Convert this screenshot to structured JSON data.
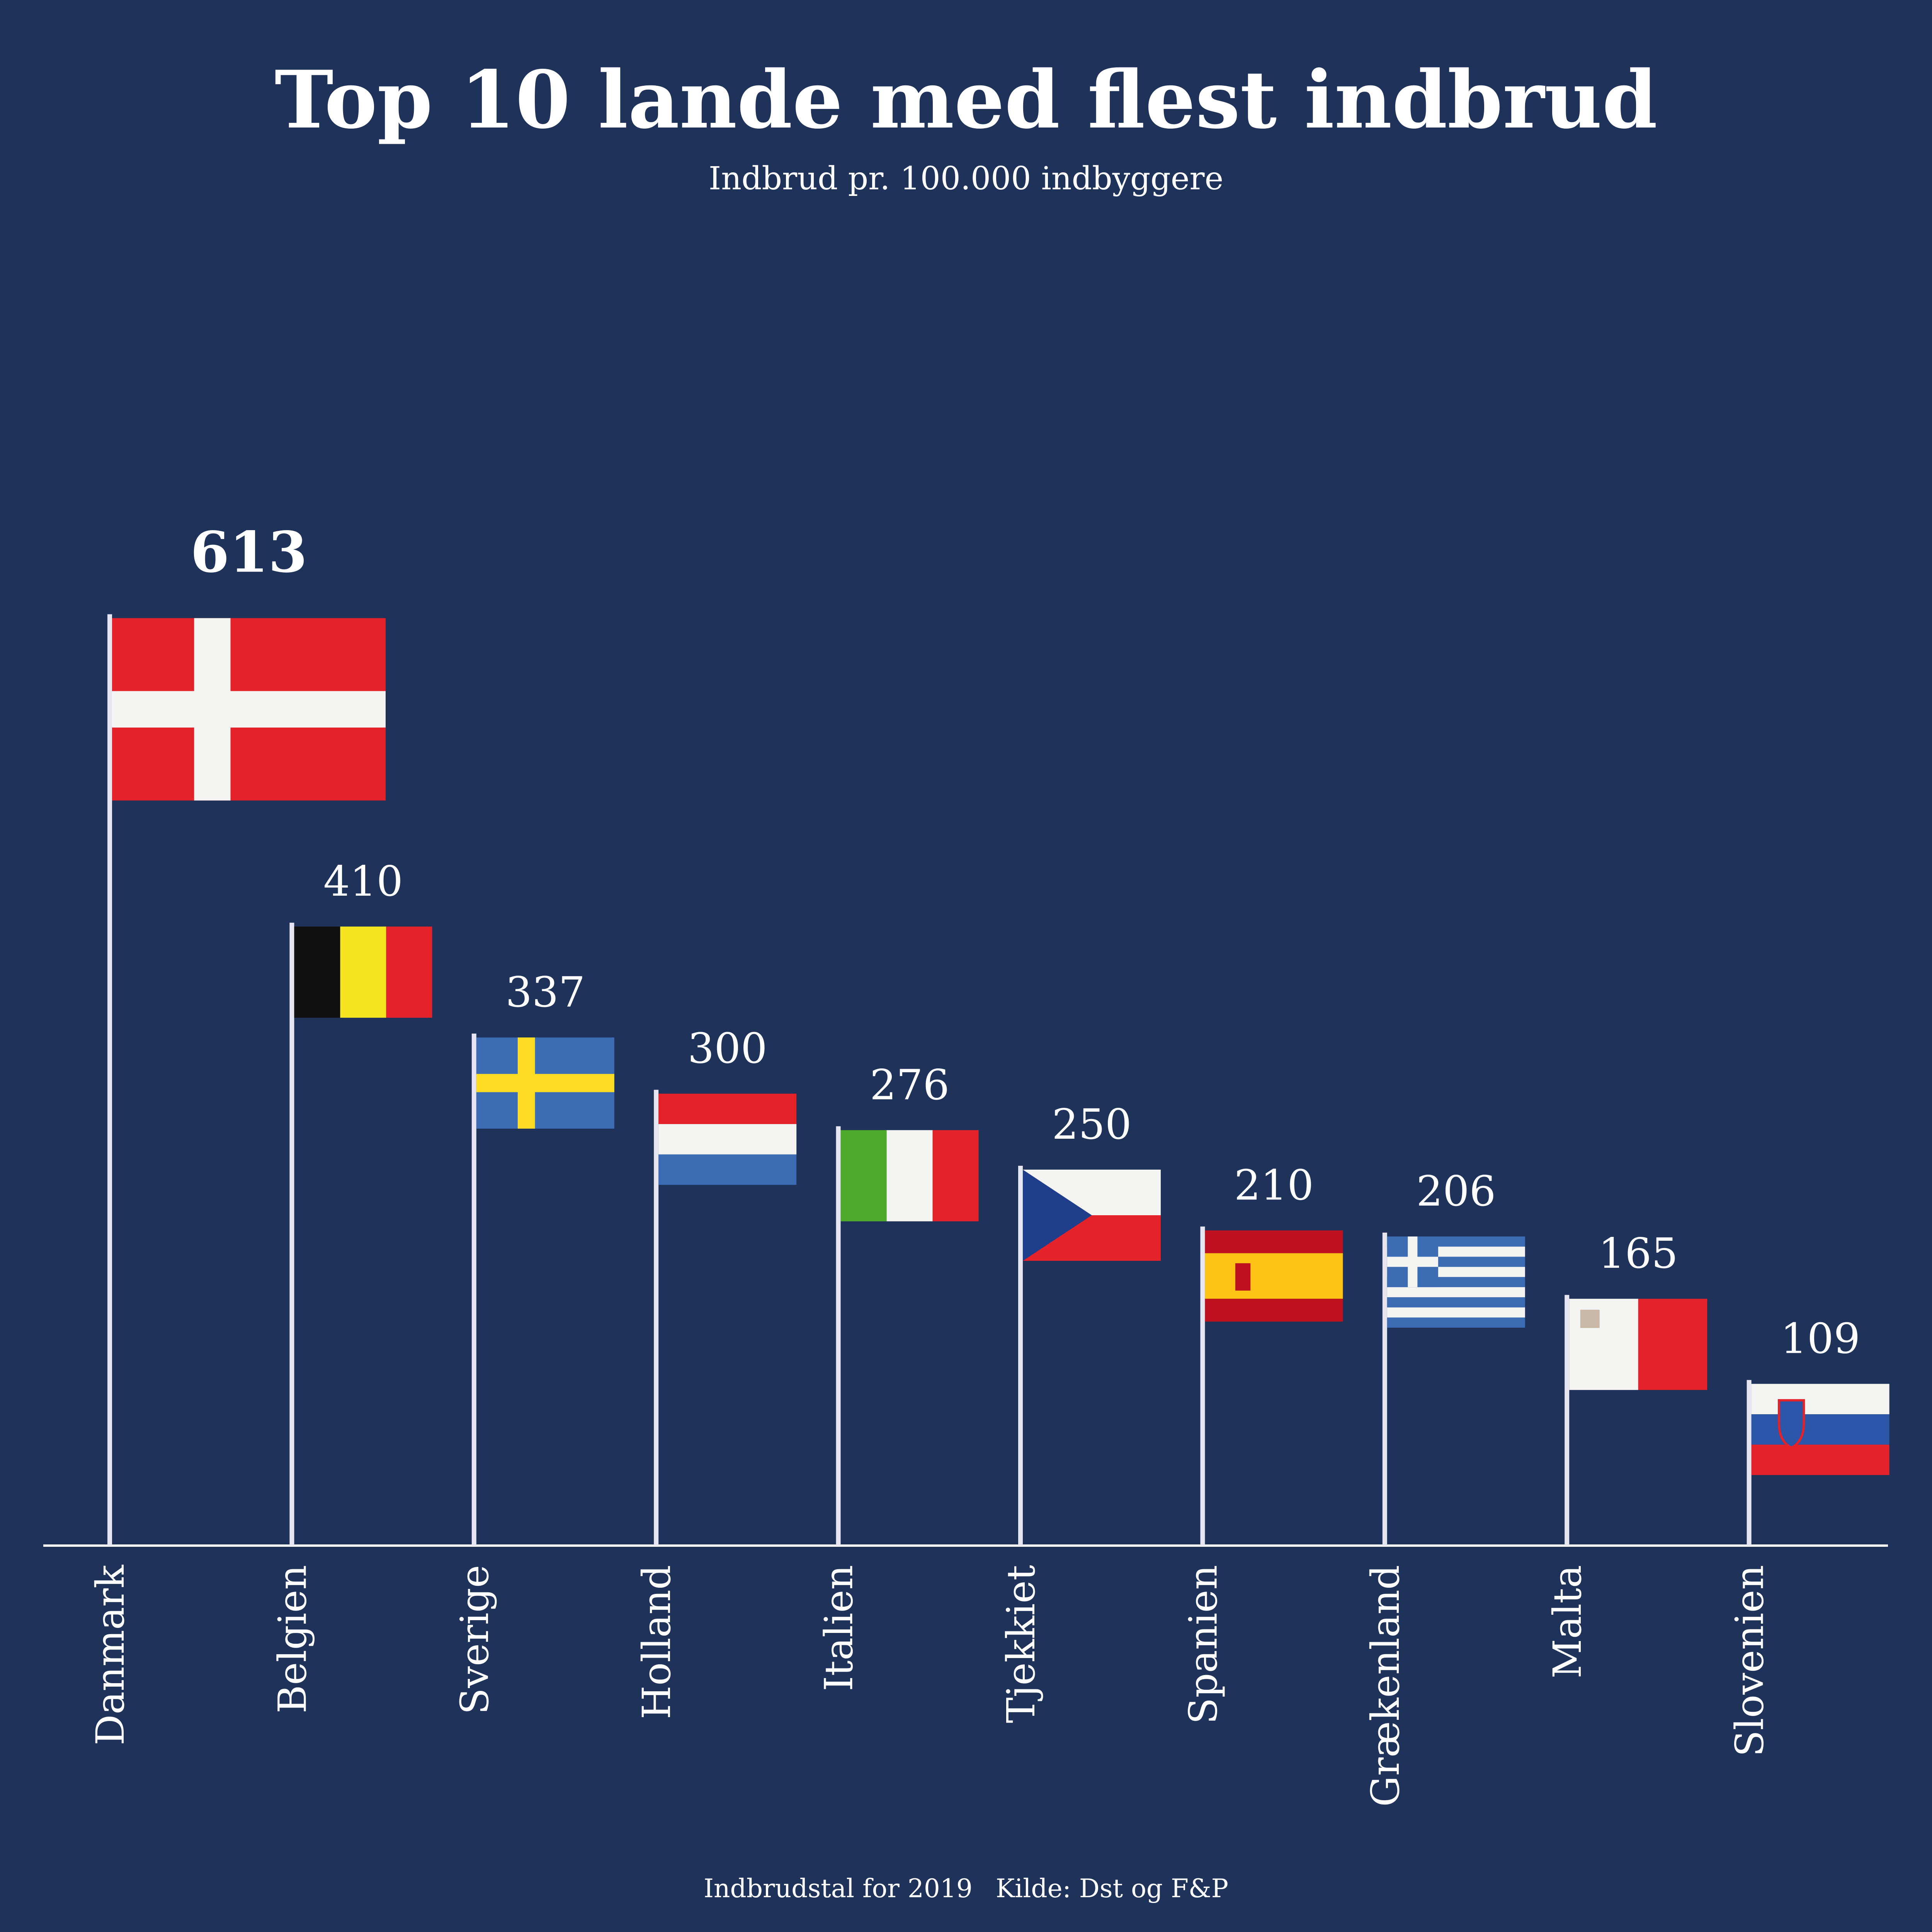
{
  "title": "Top 10 lande med flest indbrud",
  "subtitle": "Indbrud pr. 100.000 indbyggere",
  "footer": {
    "note": "Indbrudstal for 2019",
    "source": "Kilde: Dst og F&P"
  },
  "colors": {
    "background": "#1f3259",
    "pole": "#e6e6f2",
    "text": "#ffffff"
  },
  "chart_data": {
    "type": "bar",
    "title": "Top 10 lande med flest indbrud",
    "subtitle": "Indbrud pr. 100.000 indbyggere",
    "categories": [
      "Danmark",
      "Belgien",
      "Sverige",
      "Holland",
      "Italien",
      "Tjekkiet",
      "Spanien",
      "Grækenland",
      "Malta",
      "Slovenien"
    ],
    "values": [
      613,
      410,
      337,
      300,
      276,
      250,
      210,
      206,
      165,
      109
    ],
    "flags": [
      "denmark-flag",
      "belgium-flag",
      "sweden-flag",
      "netherlands-flag",
      "italy-flag",
      "czechia-flag",
      "spain-flag",
      "greece-flag",
      "malta-flag",
      "slovenia-flag"
    ],
    "highlight": "Danmark",
    "ylim": [
      0,
      613
    ],
    "grid": false
  }
}
